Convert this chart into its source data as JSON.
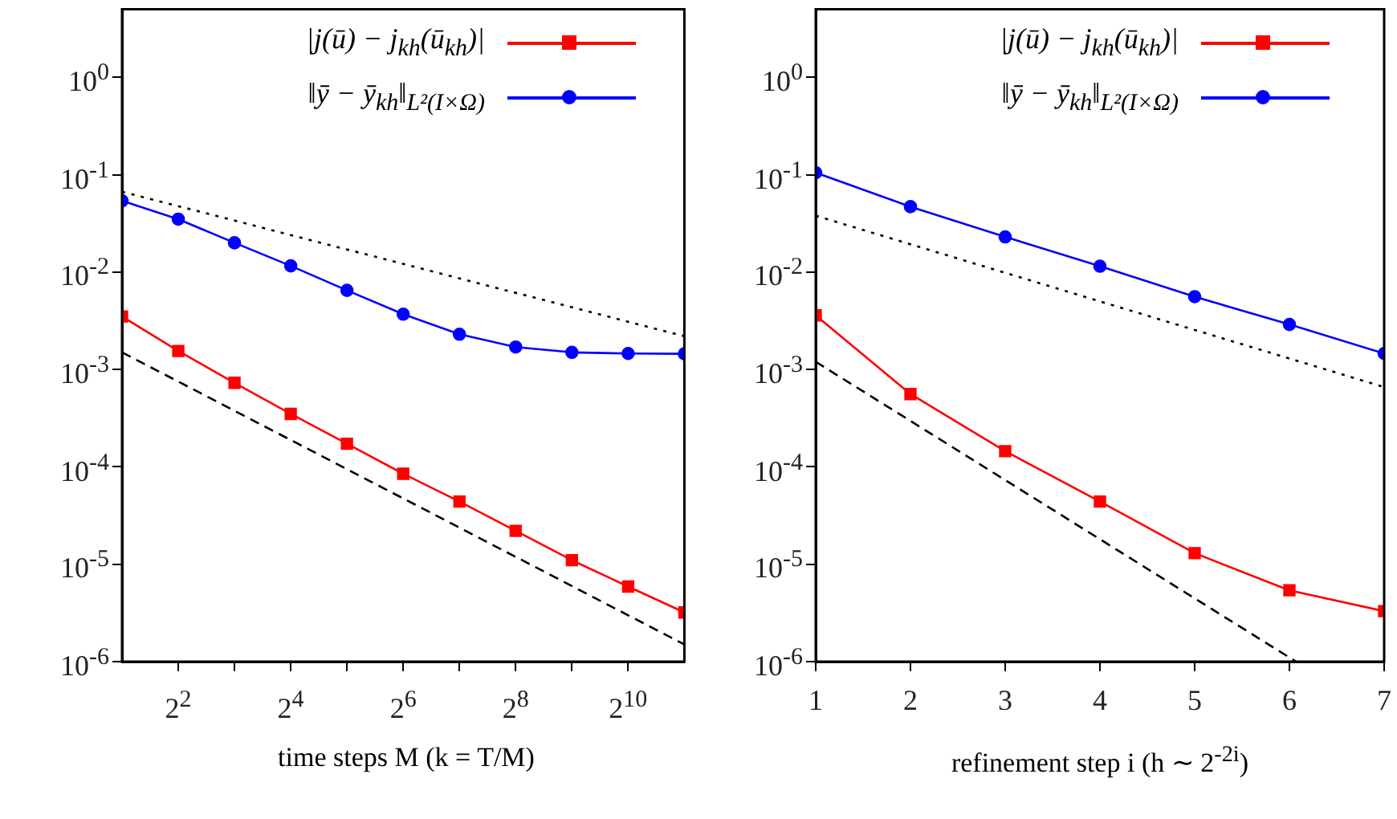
{
  "chart_data": [
    {
      "type": "line",
      "xlabel": "time steps M (k = T/M)",
      "log": "xy",
      "legend": "top right",
      "grid": false,
      "xlim": [
        2,
        2048
      ],
      "xticks": [
        {
          "value": 4,
          "label": "2$^{2}$"
        },
        {
          "value": 8,
          "label": null
        },
        {
          "value": 16,
          "label": "2$^{4}$"
        },
        {
          "value": 32,
          "label": null
        },
        {
          "value": 64,
          "label": "2$^{6}$"
        },
        {
          "value": 128,
          "label": null
        },
        {
          "value": 256,
          "label": "2$^{8}$"
        },
        {
          "value": 512,
          "label": null
        },
        {
          "value": 1024,
          "label": "2$^{10}$"
        }
      ],
      "ylim": [
        1e-06,
        5
      ],
      "yticks": [
        {
          "value": 1e-06,
          "label": "10$^{-6}$"
        },
        {
          "value": 1e-05,
          "label": "10$^{-5}$"
        },
        {
          "value": 0.0001,
          "label": "10$^{-4}$"
        },
        {
          "value": 0.001,
          "label": "10$^{-3}$"
        },
        {
          "value": 0.01,
          "label": "10$^{-2}$"
        },
        {
          "value": 0.1,
          "label": "10$^{-1}$"
        },
        {
          "value": 1,
          "label": "10$^{0}$"
        }
      ],
      "series": [
        {
          "name": "|j(ū) − j$_{kh}$(ū$_{kh}$)|",
          "color": "#ff0000",
          "marker": "square",
          "line_style": "solid",
          "x": [
            2,
            4,
            8,
            16,
            32,
            64,
            128,
            256,
            512,
            1024,
            2048
          ],
          "values": [
            0.0035,
            0.00155,
            0.00073,
            0.00035,
            0.000173,
            8.5e-05,
            4.4e-05,
            2.2e-05,
            1.1e-05,
            5.9e-06,
            3.2e-06
          ]
        },
        {
          "name": "‖ȳ − ȳ$_{kh}$‖$_{L²(I×Ω)}$",
          "color": "#0000ff",
          "marker": "circle",
          "line_style": "solid",
          "x": [
            2,
            4,
            8,
            16,
            32,
            64,
            128,
            256,
            512,
            1024,
            2048
          ],
          "values": [
            0.054,
            0.035,
            0.02,
            0.0116,
            0.0065,
            0.0037,
            0.0023,
            0.0017,
            0.0015,
            0.00146,
            0.00145
          ]
        },
        {
          "color": "#000000",
          "marker": "none",
          "line_style": "dotted",
          "x": [
            2,
            2048
          ],
          "values": [
            0.067,
            0.0022
          ]
        },
        {
          "color": "#000000",
          "marker": "none",
          "line_style": "dashed",
          "x": [
            2,
            2048
          ],
          "values": [
            0.0015,
            1.5e-06
          ]
        }
      ]
    },
    {
      "type": "line",
      "xlabel": "refinement step i (h ∼ 2$^{-2i}$)",
      "log": "y",
      "legend": "top right",
      "grid": false,
      "xlim": [
        1,
        7
      ],
      "xticks": [
        1,
        2,
        3,
        4,
        5,
        6,
        7
      ],
      "ylim": [
        1e-06,
        5
      ],
      "yticks": [
        {
          "value": 1e-06,
          "label": "10$^{-6}$"
        },
        {
          "value": 1e-05,
          "label": "10$^{-5}$"
        },
        {
          "value": 0.0001,
          "label": "10$^{-4}$"
        },
        {
          "value": 0.001,
          "label": "10$^{-3}$"
        },
        {
          "value": 0.01,
          "label": "10$^{-2}$"
        },
        {
          "value": 0.1,
          "label": "10$^{-1}$"
        },
        {
          "value": 1,
          "label": "10$^{0}$"
        }
      ],
      "series": [
        {
          "name": "|j(ū) − j$_{kh}$(ū$_{kh}$)|",
          "color": "#ff0000",
          "marker": "square",
          "line_style": "solid",
          "x": [
            1,
            2,
            3,
            4,
            5,
            6,
            7
          ],
          "values": [
            0.0036,
            0.00056,
            0.000145,
            4.4e-05,
            1.3e-05,
            5.4e-06,
            3.3e-06
          ]
        },
        {
          "name": "‖ȳ − ȳ$_{kh}$‖$_{L²(I×Ω)}$",
          "color": "#0000ff",
          "marker": "circle",
          "line_style": "solid",
          "x": [
            1,
            2,
            3,
            4,
            5,
            6,
            7
          ],
          "values": [
            0.105,
            0.047,
            0.023,
            0.0115,
            0.0056,
            0.0029,
            0.00146
          ]
        },
        {
          "color": "#000000",
          "marker": "none",
          "line_style": "dotted",
          "x": [
            1,
            7
          ],
          "values": [
            0.038,
            0.00066
          ]
        },
        {
          "color": "#000000",
          "marker": "none",
          "line_style": "dashed",
          "x": [
            1,
            6.07
          ],
          "values": [
            0.0012,
            1e-06
          ]
        }
      ]
    }
  ]
}
